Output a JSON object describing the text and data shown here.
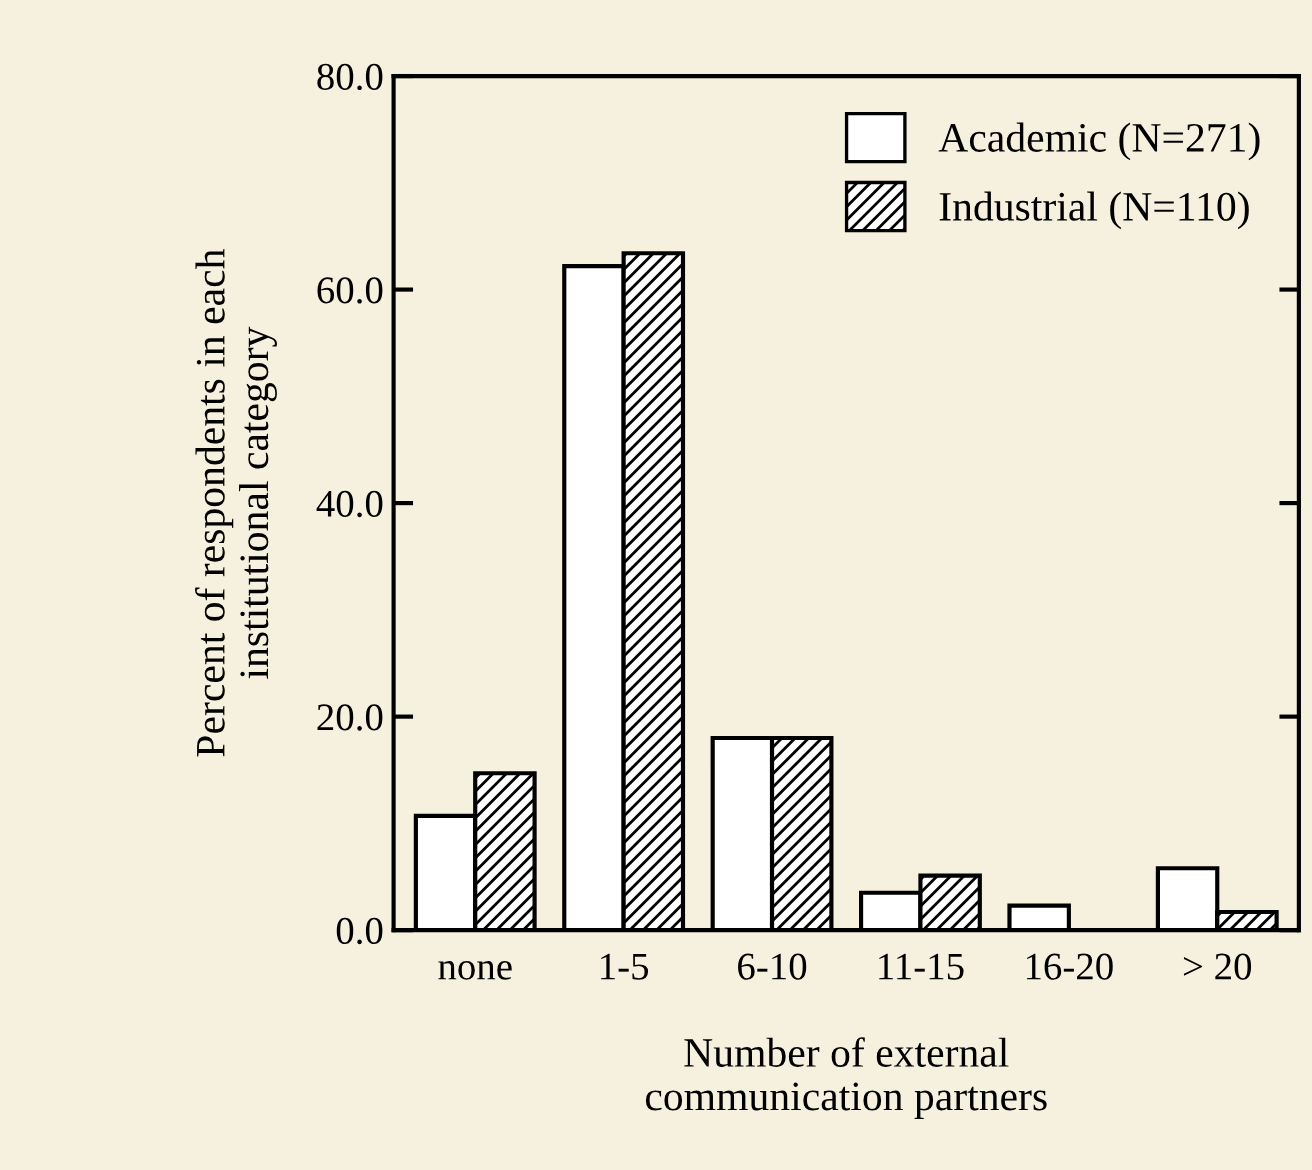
{
  "chart_data": {
    "type": "bar",
    "xlabel": "Number of external\ncommunication partners",
    "ylabel": "Percent of respondents in each\ninstitutional category",
    "categories": [
      "none",
      "1-5",
      "6-10",
      "11-15",
      "16-20",
      "> 20"
    ],
    "series": [
      {
        "name": "Academic (N=271)",
        "color": "#ffffff",
        "values": [
          10.7,
          62.2,
          18.0,
          3.5,
          2.3,
          5.8
        ]
      },
      {
        "name": "Industrial (N=110)",
        "color": "#000000",
        "values": [
          14.7,
          63.4,
          18.0,
          5.1,
          0,
          1.7
        ]
      }
    ],
    "ylim": [
      0,
      80
    ],
    "yticks": [
      {
        "value": 0,
        "label": "0.0"
      },
      {
        "value": 20,
        "label": "20.0"
      },
      {
        "value": 40,
        "label": "40.0"
      },
      {
        "value": 60,
        "label": "60.0"
      },
      {
        "value": 80,
        "label": "80.0"
      }
    ],
    "grid": false,
    "legend": "top right"
  }
}
